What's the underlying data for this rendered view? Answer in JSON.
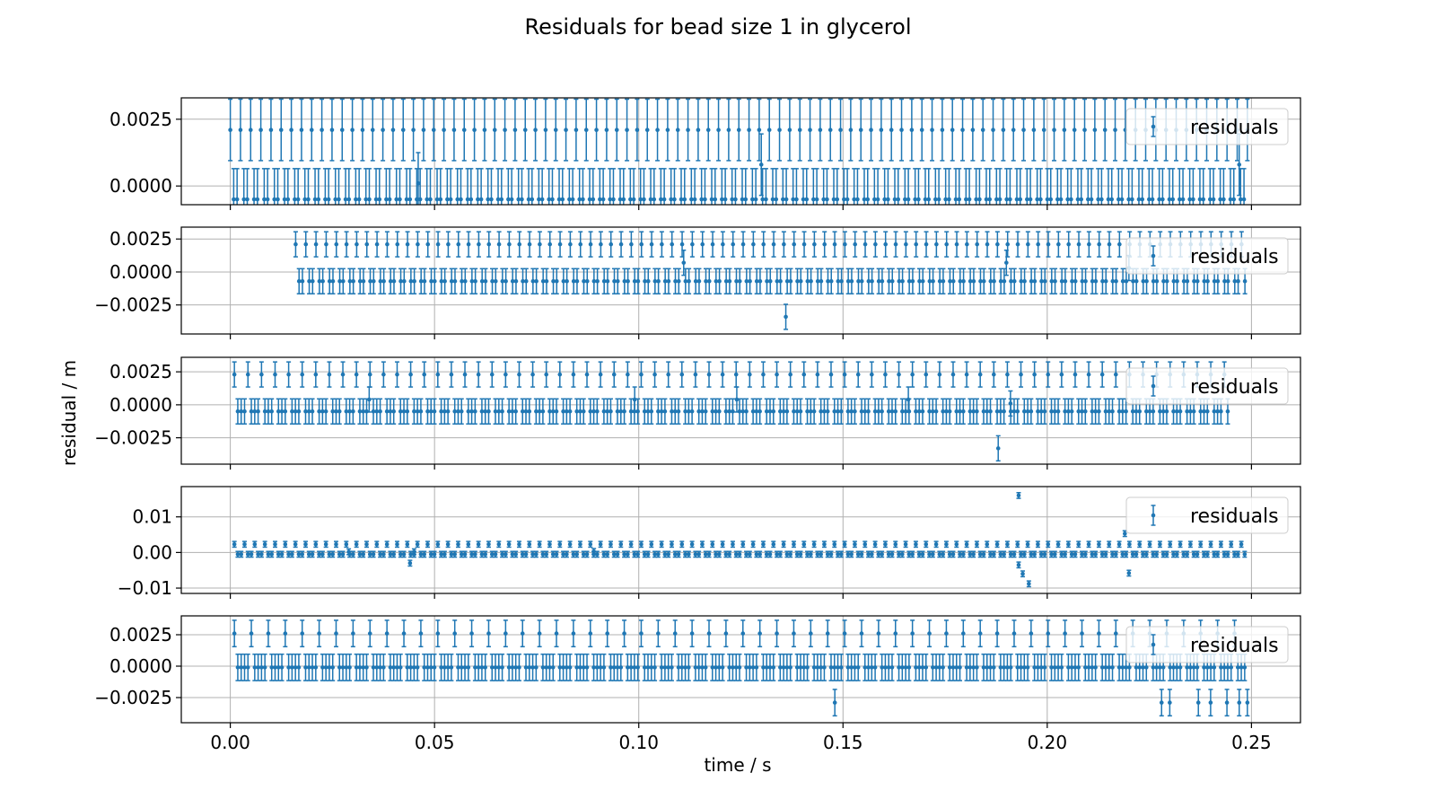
{
  "chart_data": {
    "type": "scatter",
    "title": "Residuals for bead  size 1 in glycerol",
    "xlabel": "time / s",
    "ylabel": "residual / m",
    "xlim": [
      -0.012,
      0.262
    ],
    "xticks": [
      0.0,
      0.05,
      0.1,
      0.15,
      0.2,
      0.25
    ],
    "xtick_labels": [
      "0.00",
      "0.05",
      "0.10",
      "0.15",
      "0.20",
      "0.25"
    ],
    "grid": true,
    "legend_placement": "top-right",
    "series_color": "#1f77b4",
    "panels": [
      {
        "ylim": [
          -0.0007,
          0.0033
        ],
        "yticks": [
          0.0,
          0.0025
        ],
        "ytick_labels": [
          "0.0000",
          "0.0025"
        ],
        "legend": "residuals",
        "error": 0.00115,
        "t_start": 0.0,
        "t_end": 0.249,
        "dt": 0.00083,
        "levels": [
          0.0021,
          -0.0005
        ],
        "high_every": 3,
        "outliers": [
          [
            0.046,
            0.0001
          ],
          [
            0.13,
            0.0008
          ],
          [
            0.247,
            0.0008
          ]
        ]
      },
      {
        "ylim": [
          -0.0047,
          0.0034
        ],
        "yticks": [
          -0.0025,
          0.0,
          0.0025
        ],
        "ytick_labels": [
          "−0.0025",
          "0.0000",
          "0.0025"
        ],
        "legend": "residuals",
        "error": 0.00095,
        "t_start": 0.016,
        "t_end": 0.249,
        "dt": 0.00083,
        "levels": [
          0.0021,
          -0.0007
        ],
        "high_every": 3,
        "outliers": [
          [
            0.111,
            0.0007
          ],
          [
            0.136,
            -0.0034
          ],
          [
            0.19,
            0.0007
          ],
          [
            0.22,
            0.0003
          ]
        ]
      },
      {
        "ylim": [
          -0.0045,
          0.0036
        ],
        "yticks": [
          -0.0025,
          0.0,
          0.0025
        ],
        "ytick_labels": [
          "−0.0025",
          "0.0000",
          "0.0025"
        ],
        "legend": "residuals",
        "error": 0.00095,
        "t_start": 0.001,
        "t_end": 0.245,
        "dt": 0.00083,
        "levels": [
          0.0023,
          -0.0005
        ],
        "high_every": 4,
        "outliers": [
          [
            0.034,
            0.0004
          ],
          [
            0.099,
            0.0004
          ],
          [
            0.124,
            0.0004
          ],
          [
            0.166,
            0.0004
          ],
          [
            0.188,
            -0.0033
          ],
          [
            0.191,
            0.0001
          ]
        ]
      },
      {
        "ylim": [
          -0.0115,
          0.0185
        ],
        "yticks": [
          -0.01,
          0.0,
          0.01
        ],
        "ytick_labels": [
          "−0.01",
          "0.00",
          "0.01"
        ],
        "legend": "residuals",
        "error": 0.0008,
        "t_start": 0.001,
        "t_end": 0.249,
        "dt": 0.00083,
        "levels": [
          0.0023,
          -0.0005
        ],
        "high_every": 3,
        "outliers": [
          [
            0.044,
            -0.003
          ],
          [
            0.045,
            0.0002
          ],
          [
            0.193,
            0.016
          ],
          [
            0.194,
            -0.006
          ],
          [
            0.1955,
            -0.0088
          ],
          [
            0.193,
            -0.0035
          ],
          [
            0.219,
            0.0053
          ],
          [
            0.22,
            -0.0058
          ],
          [
            0.029,
            0.0002
          ],
          [
            0.089,
            0.0003
          ]
        ]
      },
      {
        "ylim": [
          -0.0045,
          0.004
        ],
        "yticks": [
          -0.0025,
          0.0,
          0.0025
        ],
        "ytick_labels": [
          "−0.0025",
          "0.0000",
          "0.0025"
        ],
        "legend": "residuals",
        "error": 0.00105,
        "t_start": 0.001,
        "t_end": 0.249,
        "dt": 0.00083,
        "levels": [
          0.0026,
          -0.0001
        ],
        "high_every": 5,
        "outliers": [
          [
            0.148,
            -0.0029
          ],
          [
            0.228,
            -0.0029
          ],
          [
            0.23,
            -0.0029
          ],
          [
            0.237,
            -0.0029
          ],
          [
            0.24,
            -0.0029
          ],
          [
            0.244,
            -0.0029
          ],
          [
            0.247,
            -0.0029
          ],
          [
            0.249,
            -0.0029
          ]
        ]
      }
    ]
  }
}
